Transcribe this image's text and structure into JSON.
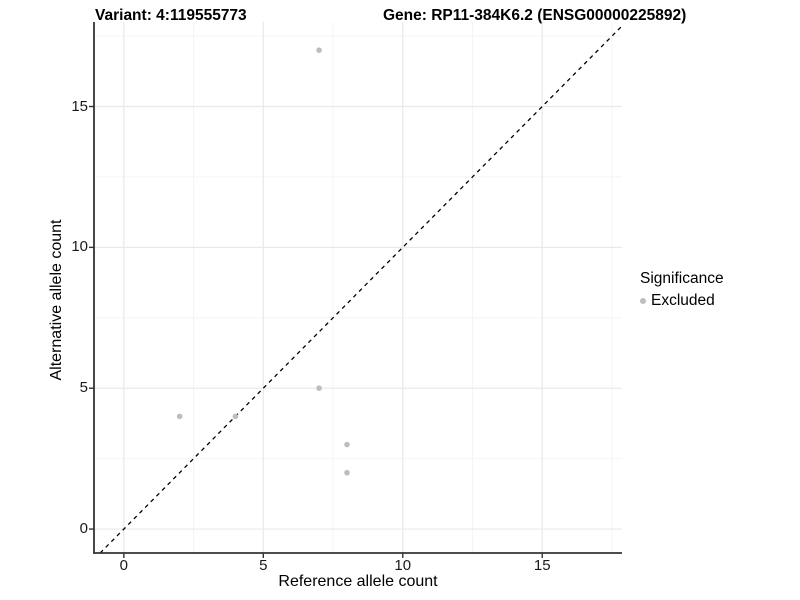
{
  "header": {
    "variant_title": "Variant: 4:119555773",
    "gene_title": "Gene: RP11-384K6.2 (ENSG00000225892)"
  },
  "chart_data": {
    "type": "scatter",
    "title_left": "Variant: 4:119555773",
    "title_right": "Gene: RP11-384K6.2 (ENSG00000225892)",
    "xlabel": "Reference allele count",
    "ylabel": "Alternative allele count",
    "xlim": [
      -1.07,
      17.86
    ],
    "ylim": [
      -0.85,
      18.0
    ],
    "xticks": [
      0,
      5,
      10,
      15
    ],
    "yticks": [
      0,
      5,
      10,
      15
    ],
    "minor_gridlines": [
      2.5,
      7.5,
      12.5,
      17.5
    ],
    "grid": true,
    "identity_line": {
      "type": "y=x",
      "style": "dashed",
      "color": "#000000"
    },
    "series": [
      {
        "name": "Excluded",
        "color": "#bdbdbd",
        "points": [
          {
            "x": 7,
            "y": 17
          },
          {
            "x": 2,
            "y": 4
          },
          {
            "x": 4,
            "y": 4
          },
          {
            "x": 7,
            "y": 5
          },
          {
            "x": 8,
            "y": 3
          },
          {
            "x": 8,
            "y": 2
          }
        ]
      }
    ],
    "legend": {
      "title": "Significance",
      "position": "right",
      "items": [
        {
          "label": "Excluded",
          "color": "#bdbdbd"
        }
      ]
    },
    "colors": {
      "major_grid": "#e9e9e9",
      "minor_grid": "#f4f4f4",
      "axis_line": "#333333",
      "point": "#bdbdbd"
    }
  }
}
